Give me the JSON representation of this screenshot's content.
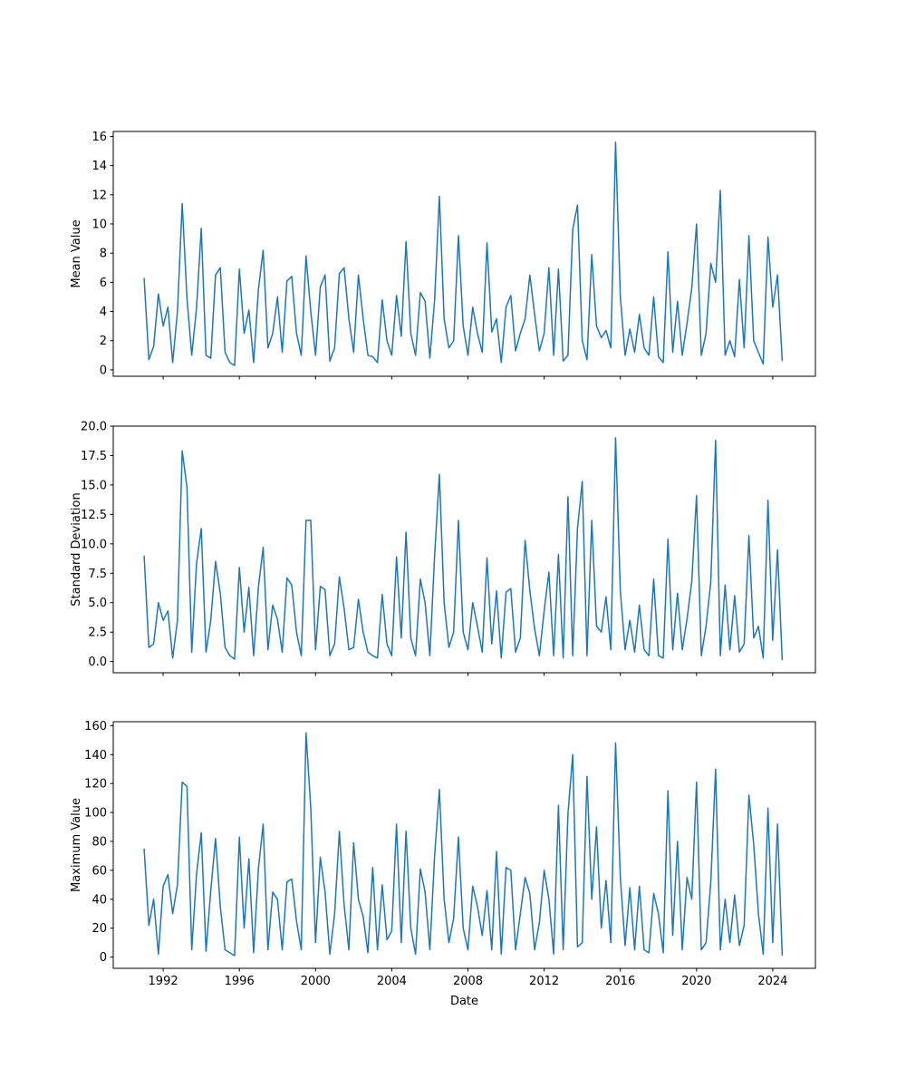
{
  "chart_data": [
    {
      "type": "line",
      "y_label": "Mean Value",
      "color": "#1f77b4",
      "xlim": [
        1989.38,
        2026.24
      ],
      "ylim": [
        -0.44,
        16.34
      ],
      "xticks": [
        1992,
        1996,
        2000,
        2004,
        2008,
        2012,
        2016,
        2020,
        2024
      ],
      "yticks": [
        0,
        2,
        4,
        6,
        8,
        10,
        12,
        14,
        16
      ],
      "x": [
        1991,
        1991.25,
        1991.5,
        1991.75,
        1992,
        1992.25,
        1992.5,
        1992.75,
        1993,
        1993.25,
        1993.5,
        1993.75,
        1994,
        1994.25,
        1994.5,
        1994.75,
        1995,
        1995.25,
        1995.5,
        1995.75,
        1996,
        1996.25,
        1996.5,
        1996.75,
        1997,
        1997.25,
        1997.5,
        1997.75,
        1998,
        1998.25,
        1998.5,
        1998.75,
        1999,
        1999.25,
        1999.5,
        1999.75,
        2000,
        2000.25,
        2000.5,
        2000.75,
        2001,
        2001.25,
        2001.5,
        2001.75,
        2002,
        2002.25,
        2002.5,
        2002.75,
        2003,
        2003.25,
        2003.5,
        2003.75,
        2004,
        2004.25,
        2004.5,
        2004.75,
        2005,
        2005.25,
        2005.5,
        2005.75,
        2006,
        2006.25,
        2006.5,
        2006.75,
        2007,
        2007.25,
        2007.5,
        2007.75,
        2008,
        2008.25,
        2008.5,
        2008.75,
        2009,
        2009.25,
        2009.5,
        2009.75,
        2010,
        2010.25,
        2010.5,
        2010.75,
        2011,
        2011.25,
        2011.5,
        2011.75,
        2012,
        2012.25,
        2012.5,
        2012.75,
        2013,
        2013.25,
        2013.5,
        2013.75,
        2014,
        2014.25,
        2014.5,
        2014.75,
        2015,
        2015.25,
        2015.5,
        2015.75,
        2016,
        2016.25,
        2016.5,
        2016.75,
        2017,
        2017.25,
        2017.5,
        2017.75,
        2018,
        2018.25,
        2018.5,
        2018.75,
        2019,
        2019.25,
        2019.5,
        2019.75,
        2020,
        2020.25,
        2020.5,
        2020.75,
        2021,
        2021.25,
        2021.5,
        2021.75,
        2022,
        2022.25,
        2022.5,
        2022.75,
        2023,
        2023.25,
        2023.5,
        2023.75,
        2024,
        2024.25,
        2024.5
      ],
      "values": [
        6.3,
        0.7,
        1.6,
        5.2,
        3.0,
        4.3,
        0.5,
        4.0,
        11.4,
        4.9,
        1.0,
        4.2,
        9.7,
        1.0,
        0.8,
        6.5,
        7.0,
        1.2,
        0.5,
        0.3,
        6.9,
        2.5,
        4.1,
        0.5,
        5.5,
        8.2,
        1.5,
        2.5,
        5.0,
        1.2,
        6.1,
        6.4,
        2.5,
        1.0,
        7.8,
        4.0,
        1.0,
        5.7,
        6.5,
        0.6,
        1.5,
        6.6,
        7.0,
        3.5,
        1.2,
        6.5,
        3.5,
        1.0,
        0.9,
        0.5,
        4.8,
        2.0,
        1.0,
        5.1,
        2.3,
        8.8,
        2.5,
        1.0,
        5.3,
        4.7,
        0.8,
        4.8,
        11.9,
        3.5,
        1.5,
        2.0,
        9.2,
        3.0,
        1.0,
        4.3,
        2.5,
        1.2,
        8.7,
        2.6,
        3.5,
        0.5,
        4.3,
        5.1,
        1.3,
        2.5,
        3.5,
        6.5,
        3.8,
        1.3,
        2.5,
        7.0,
        1.0,
        6.9,
        0.6,
        1.0,
        9.6,
        11.3,
        2.0,
        0.7,
        7.9,
        3.0,
        2.2,
        2.7,
        1.5,
        15.6,
        5.0,
        1.0,
        2.8,
        1.2,
        3.8,
        1.5,
        1.0,
        5.0,
        0.9,
        0.5,
        8.1,
        1.2,
        4.7,
        1.0,
        3.2,
        5.6,
        10.0,
        1.0,
        2.5,
        7.3,
        6.0,
        12.3,
        1.0,
        2.0,
        0.9,
        6.2,
        1.5,
        9.2,
        2.0,
        1.2,
        0.4,
        9.1,
        4.3,
        6.5,
        0.6
      ]
    },
    {
      "type": "line",
      "y_label": "Standard Deviation",
      "color": "#1f77b4",
      "xlim": [
        1989.38,
        2026.24
      ],
      "ylim": [
        -0.95,
        20.0
      ],
      "xticks": [
        1992,
        1996,
        2000,
        2004,
        2008,
        2012,
        2016,
        2020,
        2024
      ],
      "yticks": [
        {
          "value": 0,
          "label": "0.0"
        },
        2.5,
        {
          "value": 5,
          "label": "5.0"
        },
        7.5,
        {
          "value": 10,
          "label": "10.0"
        },
        12.5,
        {
          "value": 15,
          "label": "15.0"
        },
        17.5,
        {
          "value": 20,
          "label": "20.0"
        }
      ],
      "x": [
        1991,
        1991.25,
        1991.5,
        1991.75,
        1992,
        1992.25,
        1992.5,
        1992.75,
        1993,
        1993.25,
        1993.5,
        1993.75,
        1994,
        1994.25,
        1994.5,
        1994.75,
        1995,
        1995.25,
        1995.5,
        1995.75,
        1996,
        1996.25,
        1996.5,
        1996.75,
        1997,
        1997.25,
        1997.5,
        1997.75,
        1998,
        1998.25,
        1998.5,
        1998.75,
        1999,
        1999.25,
        1999.5,
        1999.75,
        2000,
        2000.25,
        2000.5,
        2000.75,
        2001,
        2001.25,
        2001.5,
        2001.75,
        2002,
        2002.25,
        2002.5,
        2002.75,
        2003,
        2003.25,
        2003.5,
        2003.75,
        2004,
        2004.25,
        2004.5,
        2004.75,
        2005,
        2005.25,
        2005.5,
        2005.75,
        2006,
        2006.25,
        2006.5,
        2006.75,
        2007,
        2007.25,
        2007.5,
        2007.75,
        2008,
        2008.25,
        2008.5,
        2008.75,
        2009,
        2009.25,
        2009.5,
        2009.75,
        2010,
        2010.25,
        2010.5,
        2010.75,
        2011,
        2011.25,
        2011.5,
        2011.75,
        2012,
        2012.25,
        2012.5,
        2012.75,
        2013,
        2013.25,
        2013.5,
        2013.75,
        2014,
        2014.25,
        2014.5,
        2014.75,
        2015,
        2015.25,
        2015.5,
        2015.75,
        2016,
        2016.25,
        2016.5,
        2016.75,
        2017,
        2017.25,
        2017.5,
        2017.75,
        2018,
        2018.25,
        2018.5,
        2018.75,
        2019,
        2019.25,
        2019.5,
        2019.75,
        2020,
        2020.25,
        2020.5,
        2020.75,
        2021,
        2021.25,
        2021.5,
        2021.75,
        2022,
        2022.25,
        2022.5,
        2022.75,
        2023,
        2023.25,
        2023.5,
        2023.75,
        2024,
        2024.25,
        2024.5
      ],
      "values": [
        9.0,
        1.2,
        1.5,
        5.0,
        3.5,
        4.3,
        0.3,
        3.5,
        17.9,
        14.8,
        0.8,
        8.3,
        11.3,
        0.8,
        3.5,
        8.5,
        5.8,
        1.2,
        0.5,
        0.2,
        8.0,
        2.5,
        6.3,
        0.5,
        6.3,
        9.7,
        1.0,
        4.8,
        3.6,
        0.8,
        7.1,
        6.5,
        2.5,
        0.5,
        12.0,
        12.0,
        1.0,
        6.4,
        6.1,
        0.5,
        1.5,
        7.2,
        4.5,
        1.0,
        1.2,
        5.3,
        2.5,
        0.8,
        0.5,
        0.3,
        5.7,
        1.5,
        0.5,
        8.9,
        2.0,
        11.0,
        2.0,
        0.5,
        7.0,
        5.0,
        0.5,
        9.0,
        15.9,
        5.0,
        1.2,
        2.5,
        12.0,
        2.5,
        1.0,
        5.0,
        3.0,
        0.8,
        8.8,
        1.5,
        6.0,
        0.3,
        5.9,
        6.2,
        0.8,
        2.0,
        10.3,
        6.0,
        2.8,
        0.5,
        4.3,
        7.6,
        0.5,
        9.1,
        0.3,
        14.0,
        0.5,
        11.3,
        15.3,
        0.5,
        12.0,
        3.0,
        2.5,
        5.5,
        1.0,
        19.0,
        6.0,
        1.0,
        3.5,
        0.8,
        4.8,
        1.0,
        0.5,
        7.0,
        0.5,
        0.3,
        10.4,
        1.0,
        5.8,
        1.0,
        3.6,
        6.8,
        14.1,
        0.5,
        3.0,
        6.8,
        18.8,
        0.5,
        6.5,
        1.0,
        5.6,
        0.8,
        1.5,
        10.7,
        2.0,
        3.0,
        0.3,
        13.7,
        1.8,
        9.5,
        0.1
      ]
    },
    {
      "type": "line",
      "y_label": "Maximum Value",
      "x_label": "Date",
      "color": "#1f77b4",
      "xlim": [
        1989.38,
        2026.24
      ],
      "ylim": [
        -7.75,
        162.75
      ],
      "xticks": [
        1992,
        1996,
        2000,
        2004,
        2008,
        2012,
        2016,
        2020,
        2024
      ],
      "yticks": [
        0,
        20,
        40,
        60,
        80,
        100,
        120,
        140,
        160
      ],
      "x": [
        1991,
        1991.25,
        1991.5,
        1991.75,
        1992,
        1992.25,
        1992.5,
        1992.75,
        1993,
        1993.25,
        1993.5,
        1993.75,
        1994,
        1994.25,
        1994.5,
        1994.75,
        1995,
        1995.25,
        1995.5,
        1995.75,
        1996,
        1996.25,
        1996.5,
        1996.75,
        1997,
        1997.25,
        1997.5,
        1997.75,
        1998,
        1998.25,
        1998.5,
        1998.75,
        1999,
        1999.25,
        1999.5,
        1999.75,
        2000,
        2000.25,
        2000.5,
        2000.75,
        2001,
        2001.25,
        2001.5,
        2001.75,
        2002,
        2002.25,
        2002.5,
        2002.75,
        2003,
        2003.25,
        2003.5,
        2003.75,
        2004,
        2004.25,
        2004.5,
        2004.75,
        2005,
        2005.25,
        2005.5,
        2005.75,
        2006,
        2006.25,
        2006.5,
        2006.75,
        2007,
        2007.25,
        2007.5,
        2007.75,
        2008,
        2008.25,
        2008.5,
        2008.75,
        2009,
        2009.25,
        2009.5,
        2009.75,
        2010,
        2010.25,
        2010.5,
        2010.75,
        2011,
        2011.25,
        2011.5,
        2011.75,
        2012,
        2012.25,
        2012.5,
        2012.75,
        2013,
        2013.25,
        2013.5,
        2013.75,
        2014,
        2014.25,
        2014.5,
        2014.75,
        2015,
        2015.25,
        2015.5,
        2015.75,
        2016,
        2016.25,
        2016.5,
        2016.75,
        2017,
        2017.25,
        2017.5,
        2017.75,
        2018,
        2018.25,
        2018.5,
        2018.75,
        2019,
        2019.25,
        2019.5,
        2019.75,
        2020,
        2020.25,
        2020.5,
        2020.75,
        2021,
        2021.25,
        2021.5,
        2021.75,
        2022,
        2022.25,
        2022.5,
        2022.75,
        2023,
        2023.25,
        2023.5,
        2023.75,
        2024,
        2024.25,
        2024.5
      ],
      "values": [
        75,
        22,
        40,
        2,
        49,
        57,
        30,
        50,
        121,
        118,
        5,
        57,
        86,
        4,
        46,
        82,
        35,
        5,
        3,
        1,
        83,
        20,
        68,
        3,
        61,
        92,
        5,
        45,
        40,
        5,
        52,
        54,
        25,
        5,
        155,
        103,
        10,
        69,
        45,
        2,
        30,
        87,
        36,
        5,
        79,
        40,
        28,
        3,
        62,
        5,
        50,
        12,
        18,
        92,
        10,
        87,
        20,
        2,
        61,
        45,
        5,
        70,
        116,
        40,
        10,
        27,
        83,
        20,
        5,
        49,
        35,
        15,
        46,
        5,
        73,
        2,
        62,
        60,
        5,
        30,
        55,
        44,
        5,
        24,
        60,
        40,
        2,
        105,
        5,
        99,
        140,
        7,
        10,
        125,
        40,
        90,
        20,
        53,
        10,
        148,
        55,
        8,
        48,
        5,
        49,
        5,
        3,
        44,
        30,
        3,
        115,
        15,
        80,
        5,
        55,
        40,
        121,
        5,
        10,
        52,
        130,
        5,
        40,
        10,
        43,
        8,
        22,
        112,
        78,
        30,
        2,
        103,
        10,
        92,
        1
      ]
    }
  ]
}
